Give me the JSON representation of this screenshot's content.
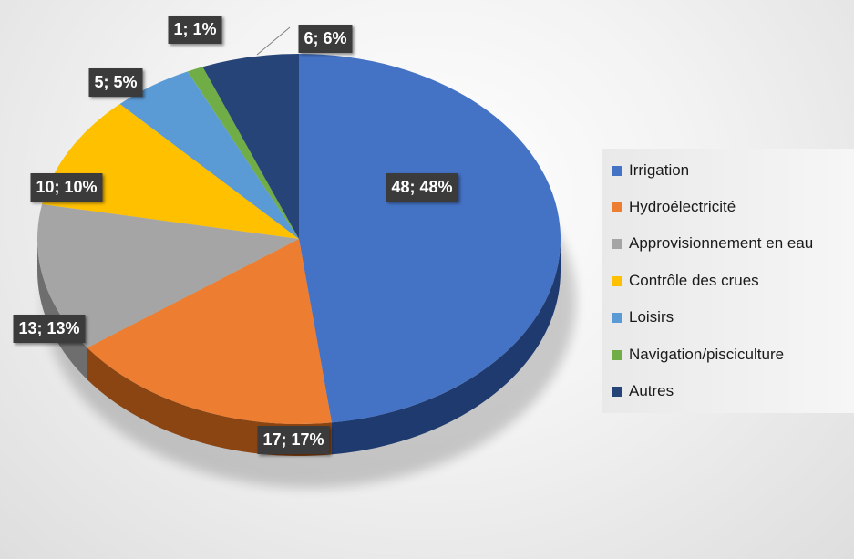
{
  "chart_data": {
    "type": "pie",
    "categories": [
      "Irrigation",
      "Hydroélectricité",
      "Approvisionnement en eau",
      "Contrôle des crues",
      "Loisirs",
      "Navigation/pisciculture",
      "Autres"
    ],
    "values": [
      48,
      17,
      13,
      10,
      5,
      1,
      6
    ],
    "data_labels": [
      "48; 48%",
      "17; 17%",
      "13; 13%",
      "10; 10%",
      "5; 5%",
      "1; 1%",
      "6; 6%"
    ],
    "colors": [
      "#4472C4",
      "#ED7D31",
      "#A5A5A5",
      "#FFC000",
      "#5B9BD5",
      "#70AD47",
      "#264478"
    ],
    "dark_colors": [
      "#1F3A6E",
      "#8A4512",
      "#6E6E6E",
      "#9A7400",
      "#2E5F8A",
      "#3E6A24",
      "#15264A"
    ],
    "legend_position": "right",
    "style": "3d"
  }
}
